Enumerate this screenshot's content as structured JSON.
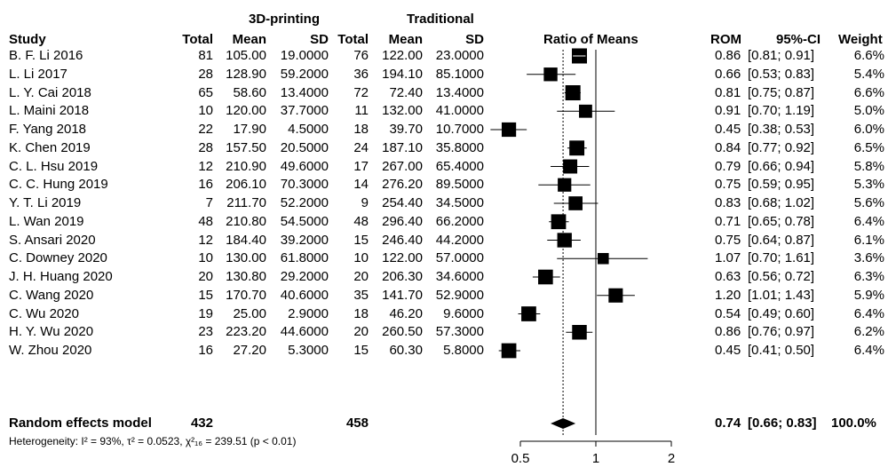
{
  "header": {
    "group1": "3D-printing",
    "group2": "Traditional",
    "study": "Study",
    "total1": "Total",
    "mean1": "Mean",
    "sd1": "SD",
    "total2": "Total",
    "mean2": "Mean",
    "sd2": "SD",
    "plot": "Ratio of Means",
    "rom": "ROM",
    "ci": "95%-CI",
    "weight": "Weight"
  },
  "summary": {
    "label": "Random effects model",
    "total1": "432",
    "total2": "458",
    "rom": "0.74",
    "ci": "[0.66; 0.83]",
    "weight": "100.0%",
    "heterogeneity": "Heterogeneity: I² = 93%, τ² = 0.0523, χ²₁₆ = 239.51 (p < 0.01)"
  },
  "chart_data": {
    "type": "forest",
    "xlabel": "",
    "xscale": "log",
    "xlim": [
      0.45,
      2.2
    ],
    "xticks": [
      "0.5",
      "1",
      "2"
    ],
    "xtick_values": [
      0.5,
      1,
      2
    ],
    "reference_line": 1,
    "summary_estimate": 0.74,
    "summary_ci": [
      0.66,
      0.83
    ],
    "studies": [
      {
        "study": "B. F. Li 2016",
        "total1": "81",
        "mean1": "105.00",
        "sd1": "19.0000",
        "total2": "76",
        "mean2": "122.00",
        "sd2": "23.0000",
        "rom": "0.86",
        "ci": "[0.81; 0.91]",
        "weight": "6.6%",
        "est": 0.86,
        "lo": 0.81,
        "hi": 0.91,
        "w": 6.6
      },
      {
        "study": "L. Li 2017",
        "total1": "28",
        "mean1": "128.90",
        "sd1": "59.2000",
        "total2": "36",
        "mean2": "194.10",
        "sd2": "85.1000",
        "rom": "0.66",
        "ci": "[0.53; 0.83]",
        "weight": "5.4%",
        "est": 0.66,
        "lo": 0.53,
        "hi": 0.83,
        "w": 5.4
      },
      {
        "study": "L. Y. Cai 2018",
        "total1": "65",
        "mean1": "58.60",
        "sd1": "13.4000",
        "total2": "72",
        "mean2": "72.40",
        "sd2": "13.4000",
        "rom": "0.81",
        "ci": "[0.75; 0.87]",
        "weight": "6.6%",
        "est": 0.81,
        "lo": 0.75,
        "hi": 0.87,
        "w": 6.6
      },
      {
        "study": "L. Maini 2018",
        "total1": "10",
        "mean1": "120.00",
        "sd1": "37.7000",
        "total2": "11",
        "mean2": "132.00",
        "sd2": "41.0000",
        "rom": "0.91",
        "ci": "[0.70; 1.19]",
        "weight": "5.0%",
        "est": 0.91,
        "lo": 0.7,
        "hi": 1.19,
        "w": 5.0
      },
      {
        "study": "F. Yang 2018",
        "total1": "22",
        "mean1": "17.90",
        "sd1": "4.5000",
        "total2": "18",
        "mean2": "39.70",
        "sd2": "10.7000",
        "rom": "0.45",
        "ci": "[0.38; 0.53]",
        "weight": "6.0%",
        "est": 0.45,
        "lo": 0.38,
        "hi": 0.53,
        "w": 6.0
      },
      {
        "study": "K. Chen 2019",
        "total1": "28",
        "mean1": "157.50",
        "sd1": "20.5000",
        "total2": "24",
        "mean2": "187.10",
        "sd2": "35.8000",
        "rom": "0.84",
        "ci": "[0.77; 0.92]",
        "weight": "6.5%",
        "est": 0.84,
        "lo": 0.77,
        "hi": 0.92,
        "w": 6.5
      },
      {
        "study": "C. L. Hsu 2019",
        "total1": "12",
        "mean1": "210.90",
        "sd1": "49.6000",
        "total2": "17",
        "mean2": "267.00",
        "sd2": "65.4000",
        "rom": "0.79",
        "ci": "[0.66; 0.94]",
        "weight": "5.8%",
        "est": 0.79,
        "lo": 0.66,
        "hi": 0.94,
        "w": 5.8
      },
      {
        "study": "C. C. Hung 2019",
        "total1": "16",
        "mean1": "206.10",
        "sd1": "70.3000",
        "total2": "14",
        "mean2": "276.20",
        "sd2": "89.5000",
        "rom": "0.75",
        "ci": "[0.59; 0.95]",
        "weight": "5.3%",
        "est": 0.75,
        "lo": 0.59,
        "hi": 0.95,
        "w": 5.3
      },
      {
        "study": "Y. T. Li 2019",
        "total1": "7",
        "mean1": "211.70",
        "sd1": "52.2000",
        "total2": "9",
        "mean2": "254.40",
        "sd2": "34.5000",
        "rom": "0.83",
        "ci": "[0.68; 1.02]",
        "weight": "5.6%",
        "est": 0.83,
        "lo": 0.68,
        "hi": 1.02,
        "w": 5.6
      },
      {
        "study": "L. Wan 2019",
        "total1": "48",
        "mean1": "210.80",
        "sd1": "54.5000",
        "total2": "48",
        "mean2": "296.40",
        "sd2": "66.2000",
        "rom": "0.71",
        "ci": "[0.65; 0.78]",
        "weight": "6.4%",
        "est": 0.71,
        "lo": 0.65,
        "hi": 0.78,
        "w": 6.4
      },
      {
        "study": "S. Ansari 2020",
        "total1": "12",
        "mean1": "184.40",
        "sd1": "39.2000",
        "total2": "15",
        "mean2": "246.40",
        "sd2": "44.2000",
        "rom": "0.75",
        "ci": "[0.64; 0.87]",
        "weight": "6.1%",
        "est": 0.75,
        "lo": 0.64,
        "hi": 0.87,
        "w": 6.1
      },
      {
        "study": "C. Downey 2020",
        "total1": "10",
        "mean1": "130.00",
        "sd1": "61.8000",
        "total2": "10",
        "mean2": "122.00",
        "sd2": "57.0000",
        "rom": "1.07",
        "ci": "[0.70; 1.61]",
        "weight": "3.6%",
        "est": 1.07,
        "lo": 0.7,
        "hi": 1.61,
        "w": 3.6
      },
      {
        "study": "J. H. Huang 2020",
        "total1": "20",
        "mean1": "130.80",
        "sd1": "29.2000",
        "total2": "20",
        "mean2": "206.30",
        "sd2": "34.6000",
        "rom": "0.63",
        "ci": "[0.56; 0.72]",
        "weight": "6.3%",
        "est": 0.63,
        "lo": 0.56,
        "hi": 0.72,
        "w": 6.3
      },
      {
        "study": "C. Wang 2020",
        "total1": "15",
        "mean1": "170.70",
        "sd1": "40.6000",
        "total2": "35",
        "mean2": "141.70",
        "sd2": "52.9000",
        "rom": "1.20",
        "ci": "[1.01; 1.43]",
        "weight": "5.9%",
        "est": 1.2,
        "lo": 1.01,
        "hi": 1.43,
        "w": 5.9
      },
      {
        "study": "C. Wu 2020",
        "total1": "19",
        "mean1": "25.00",
        "sd1": "2.9000",
        "total2": "18",
        "mean2": "46.20",
        "sd2": "9.6000",
        "rom": "0.54",
        "ci": "[0.49; 0.60]",
        "weight": "6.4%",
        "est": 0.54,
        "lo": 0.49,
        "hi": 0.6,
        "w": 6.4
      },
      {
        "study": "H. Y. Wu 2020",
        "total1": "23",
        "mean1": "223.20",
        "sd1": "44.6000",
        "total2": "20",
        "mean2": "260.50",
        "sd2": "57.3000",
        "rom": "0.86",
        "ci": "[0.76; 0.97]",
        "weight": "6.2%",
        "est": 0.86,
        "lo": 0.76,
        "hi": 0.97,
        "w": 6.2
      },
      {
        "study": "W. Zhou 2020",
        "total1": "16",
        "mean1": "27.20",
        "sd1": "5.3000",
        "total2": "15",
        "mean2": "60.30",
        "sd2": "5.8000",
        "rom": "0.45",
        "ci": "[0.41; 0.50]",
        "weight": "6.4%",
        "est": 0.45,
        "lo": 0.41,
        "hi": 0.5,
        "w": 6.4
      }
    ]
  }
}
